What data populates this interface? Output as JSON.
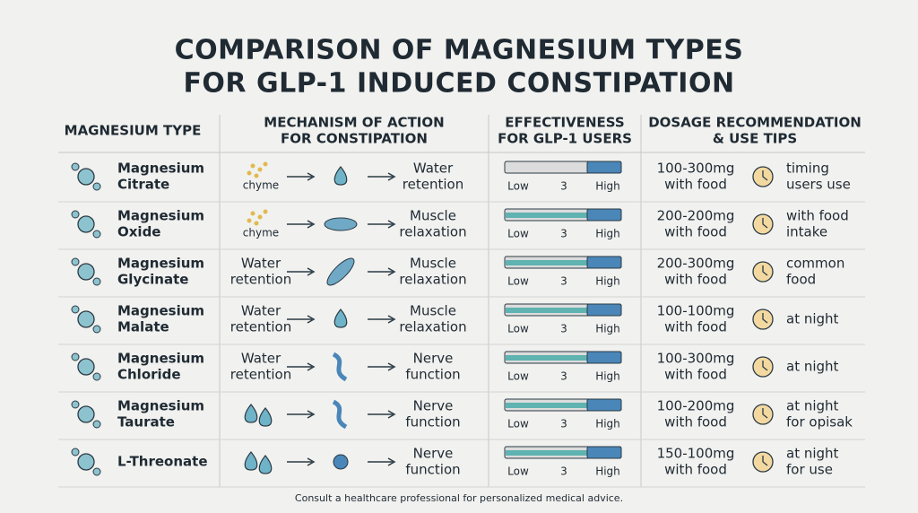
{
  "header": {
    "title": [
      "COMPARISON OF MAGNESIUM TYPES",
      "FOR GLP-1 INDUCED CONSTIPATION"
    ]
  },
  "table": {
    "columns": [
      [
        "MAGNESIUM TYPE"
      ],
      [
        "MECHANISM OF ACTION",
        "FOR CONSTIPATION"
      ],
      [
        "EFFECTIVENESS",
        "FOR GLP-1 USERS"
      ],
      [
        "DOSAGE RECOMMENDATION",
        "& USE TIPS"
      ]
    ],
    "rows": [
      {
        "type": [
          "Magnesium",
          "Citrate"
        ],
        "from": [
          "chyme"
        ],
        "to": [
          "Water",
          "retention"
        ],
        "scale": {
          "low": "Low",
          "mid": 3,
          "high": "High"
        },
        "dosage": [
          "100-300mg",
          "with food"
        ],
        "tip": [
          "timing",
          "users use"
        ]
      },
      {
        "type": [
          "Magnesium",
          "Oxide"
        ],
        "from": [
          "chyme"
        ],
        "to": [
          "Muscle",
          "relaxation"
        ],
        "scale": {
          "low": "Low",
          "mid": 3,
          "high": "High"
        },
        "dosage": [
          "200-200mg",
          "with food"
        ],
        "tip": [
          "with food",
          "intake"
        ]
      },
      {
        "type": [
          "Magnesium",
          "Glycinate"
        ],
        "from": [
          "Water",
          "retention"
        ],
        "to": [
          "Muscle",
          "relaxation"
        ],
        "scale": {
          "low": "Low",
          "mid": 3,
          "high": "High"
        },
        "dosage": [
          "200-300mg",
          "with food"
        ],
        "tip": [
          "common",
          "food"
        ]
      },
      {
        "type": [
          "Magnesium",
          "Malate"
        ],
        "from": [
          "Water",
          "retention"
        ],
        "to": [
          "Muscle",
          "relaxation"
        ],
        "scale": {
          "low": "Low",
          "mid": 3,
          "high": "High"
        },
        "dosage": [
          "100-100mg",
          "with food"
        ],
        "tip": [
          "at night"
        ]
      },
      {
        "type": [
          "Magnesium",
          "Chloride"
        ],
        "from": [
          "Water",
          "retention"
        ],
        "to": [
          "Nerve",
          "function"
        ],
        "scale": {
          "low": "Low",
          "mid": 3,
          "high": "High"
        },
        "dosage": [
          "100-300mg",
          "with food"
        ],
        "tip": [
          "at night"
        ]
      },
      {
        "type": [
          "Magnesium",
          "Taurate"
        ],
        "to": [
          "Nerve",
          "function"
        ],
        "scale": {
          "low": "Low",
          "mid": 3,
          "high": "High"
        },
        "dosage": [
          "100-200mg",
          "with food"
        ],
        "tip": [
          "at night",
          "for opisak"
        ]
      },
      {
        "type": [
          "L-Threonate"
        ],
        "to": [
          "Nerve",
          "function"
        ],
        "scale": {
          "low": "Low",
          "mid": 3,
          "high": "High"
        },
        "dosage": [
          "150-100mg",
          "with food"
        ],
        "tip": [
          "at night",
          "for use"
        ]
      }
    ]
  },
  "footer": "Consult a healthcare professional for personalized medical advice."
}
